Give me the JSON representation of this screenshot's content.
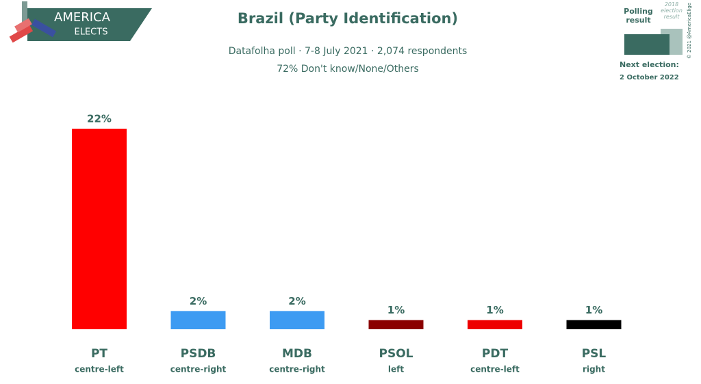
{
  "chart_data": {
    "type": "bar",
    "title": "Brazil (Party Identification)",
    "subtitle": "Datafolha poll · 7-8 July 2021 · 2,074 respondents",
    "note": "72% Don't know/None/Others",
    "categories": [
      "PT",
      "PSDB",
      "MDB",
      "PSOL",
      "PDT",
      "PSL"
    ],
    "sublabels": [
      "centre-left",
      "centre-right",
      "centre-right",
      "left",
      "centre-left",
      "right"
    ],
    "values": [
      22,
      2,
      2,
      1,
      1,
      1
    ],
    "value_labels": [
      "22%",
      "2%",
      "2%",
      "1%",
      "1%",
      "1%"
    ],
    "colors": [
      "#ff0000",
      "#3d9bf2",
      "#3d9bf2",
      "#8b0000",
      "#ee0000",
      "#000000"
    ]
  },
  "branding": {
    "logo_top": "AMERICA",
    "logo_bottom": "ELECTS",
    "copyright": "© 2021 @AmericaElige"
  },
  "legend": {
    "polling": "Polling result",
    "previous": "2018 election result",
    "next_label": "Next election:",
    "next_date": "2 October 2022"
  }
}
